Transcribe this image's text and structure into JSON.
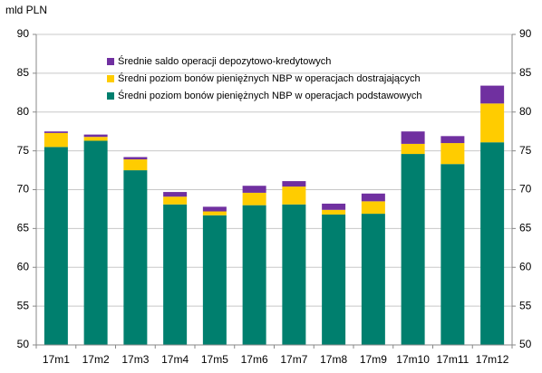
{
  "chart_data": {
    "type": "stacked_bar",
    "y_label": "mld PLN",
    "categories": [
      "17m1",
      "17m2",
      "17m3",
      "17m4",
      "17m5",
      "17m6",
      "17m7",
      "17m8",
      "17m9",
      "17m10",
      "17m11",
      "17m12"
    ],
    "series": [
      {
        "name": "Średni poziom bonów pieniężnych NBP w operacjach podstawowych",
        "color": "#007f6e",
        "values": [
          75.5,
          76.3,
          72.5,
          68.1,
          66.7,
          68.0,
          68.1,
          66.8,
          66.9,
          74.6,
          73.3,
          76.1
        ]
      },
      {
        "name": "Średni poziom bonów pieniężnych NBP w operacjach dostrajających",
        "color": "#ffcc00",
        "values": [
          1.8,
          0.5,
          1.4,
          1.0,
          0.5,
          1.6,
          2.3,
          0.6,
          1.6,
          1.3,
          2.7,
          5.0
        ]
      },
      {
        "name": "Średnie saldo operacji depozytowo-kredytowych",
        "color": "#7030a0",
        "values": [
          0.2,
          0.3,
          0.3,
          0.6,
          0.6,
          0.9,
          0.7,
          0.8,
          1.0,
          1.6,
          0.9,
          2.3
        ]
      }
    ],
    "ylim": [
      50,
      90
    ],
    "yticks": [
      50,
      55,
      60,
      65,
      70,
      75,
      80,
      85,
      90
    ],
    "y2lim": [
      50,
      90
    ],
    "y2ticks": [
      50,
      55,
      60,
      65,
      70,
      75,
      80,
      85,
      90
    ],
    "grid": true
  }
}
